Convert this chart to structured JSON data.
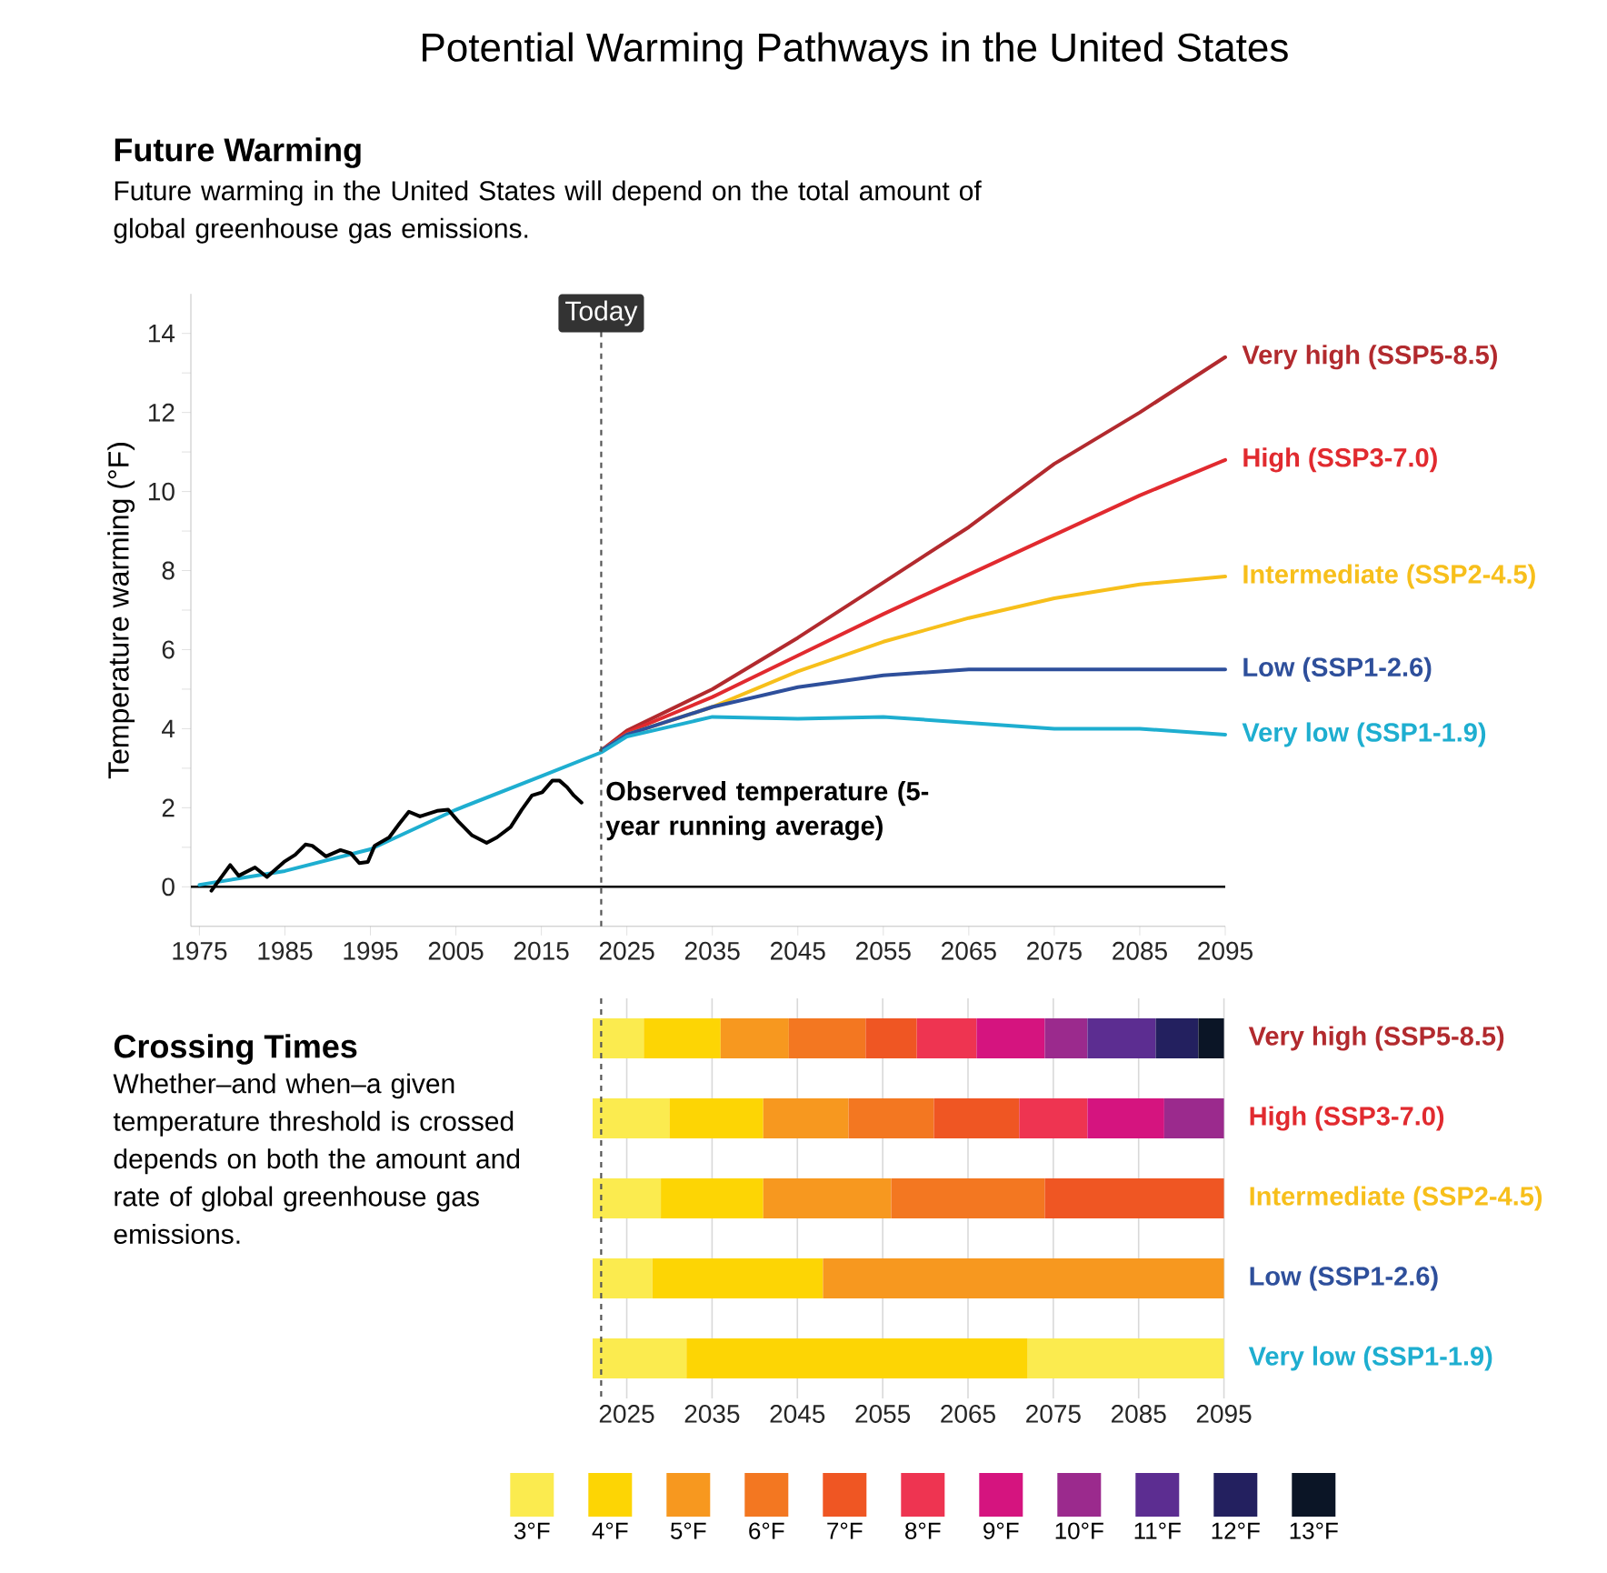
{
  "chart_data": [
    {
      "type": "line",
      "title": "Potential Warming Pathways in the United States",
      "subtitle": "Future Warming",
      "annotations": [
        "Future warming in the United States will depend on the total amount of global greenhouse gas emissions."
      ],
      "ylabel": "Temperature warming (°F)",
      "x": [
        1975,
        1985,
        1995,
        2005,
        2015,
        2022,
        2025,
        2035,
        2045,
        2055,
        2065,
        2075,
        2085,
        2095
      ],
      "xlim": [
        1974,
        2095
      ],
      "ylim": [
        -1,
        15
      ],
      "xticks": [
        1975,
        1985,
        1995,
        2005,
        2015,
        2025,
        2035,
        2045,
        2055,
        2065,
        2075,
        2085,
        2095
      ],
      "yticks": [
        0,
        {
          "value": 1,
          "label": null
        },
        2,
        {
          "value": 3,
          "label": null
        },
        4,
        {
          "value": 5,
          "label": null
        },
        6,
        {
          "value": 7,
          "label": null
        },
        8,
        {
          "value": 9,
          "label": null
        },
        10,
        {
          "value": 11,
          "label": null
        },
        12,
        {
          "value": 13,
          "label": null
        },
        14
      ],
      "series": [
        {
          "name": "Very high (SSP5-8.5)",
          "color": "#b22a2e",
          "values": [
            null,
            null,
            null,
            null,
            null,
            3.45,
            3.95,
            5.0,
            6.3,
            7.7,
            9.1,
            10.7,
            12.0,
            13.4
          ]
        },
        {
          "name": "High (SSP3-7.0)",
          "color": "#e12a2f",
          "values": [
            null,
            null,
            null,
            null,
            null,
            3.45,
            3.9,
            4.8,
            5.85,
            6.9,
            7.9,
            8.9,
            9.9,
            10.8
          ]
        },
        {
          "name": "Intermediate (SSP2-4.5)",
          "color": "#f7bf1b",
          "values": [
            null,
            null,
            null,
            null,
            null,
            3.45,
            3.85,
            4.55,
            5.45,
            6.2,
            6.8,
            7.3,
            7.65,
            7.85
          ]
        },
        {
          "name": "Low (SSP1-2.6)",
          "color": "#2e4f9b",
          "values": [
            null,
            null,
            null,
            null,
            null,
            3.45,
            3.85,
            4.55,
            5.05,
            5.35,
            5.5,
            5.5,
            5.5,
            5.5
          ]
        },
        {
          "name": "Very low (SSP1-1.9)",
          "color": "#1eaed0",
          "values": [
            0.05,
            0.4,
            0.95,
            1.95,
            2.8,
            3.4,
            3.8,
            4.3,
            4.25,
            4.3,
            4.15,
            4.0,
            4.0,
            3.85
          ]
        },
        {
          "name": "Observed temperature (5-year running average)",
          "color": "#000000",
          "x": [
            1976.4,
            1978.6,
            1979.6,
            1981.5,
            1982.9,
            1984.9,
            1986.2,
            1987.4,
            1988.2,
            1989.8,
            1991.5,
            1992.7,
            1993.7,
            1994.7,
            1995.5,
            1997.2,
            1998.4,
            1999.5,
            2000.8,
            2002.8,
            2004.1,
            2005.3,
            2006.9,
            2008.6,
            2009.8,
            2011.4,
            2012.7,
            2013.9,
            2015.1,
            2016.3,
            2017.1,
            2018.0,
            2018.8,
            2019.7
          ],
          "values": [
            -0.1,
            0.55,
            0.28,
            0.49,
            0.25,
            0.63,
            0.81,
            1.07,
            1.04,
            0.77,
            0.93,
            0.85,
            0.6,
            0.63,
            1.04,
            1.25,
            1.6,
            1.9,
            1.78,
            1.92,
            1.95,
            1.65,
            1.3,
            1.11,
            1.25,
            1.51,
            1.95,
            2.31,
            2.39,
            2.69,
            2.69,
            2.52,
            2.31,
            2.13
          ]
        }
      ],
      "ref_lines": [
        {
          "axis": "x",
          "value": 2022,
          "label": "Today",
          "line_style": "dashed",
          "color": "#555555"
        },
        {
          "axis": "y",
          "value": 0,
          "color": "#000000"
        }
      ]
    },
    {
      "type": "bar",
      "orientation": "horizontal",
      "annotations": [
        "Crossing Times",
        "Whether–and when–a given temperature threshold is crossed depends on both the amount and rate of global greenhouse gas emissions."
      ],
      "categories": [
        "Very high (SSP5-8.5)",
        "High (SSP3-7.0)",
        "Intermediate (SSP2-4.5)",
        "Low (SSP1-2.6)",
        "Very low (SSP1-1.9)"
      ],
      "xlim": [
        2021,
        2095
      ],
      "xticks": [
        2025,
        2035,
        2045,
        2055,
        2065,
        2075,
        2085,
        2095
      ],
      "grid": "x",
      "legend": "bottom",
      "series": [
        {
          "name": "3°F",
          "color": "#fbeb4f",
          "base": [
            2021,
            2021,
            2021,
            2021,
            2021
          ],
          "values": [
            6,
            9,
            8,
            7,
            11
          ]
        },
        {
          "name": "4°F",
          "color": "#fdd504",
          "base": [
            2027,
            2030,
            2029,
            2028,
            2032
          ],
          "values": [
            9,
            11,
            12,
            20,
            40
          ]
        },
        {
          "name": "5°F",
          "color": "#f7981f",
          "base": [
            2036,
            2041,
            2041,
            2048,
            null
          ],
          "values": [
            8,
            10,
            15,
            47,
            null
          ]
        },
        {
          "name": "6°F",
          "color": "#f37721",
          "base": [
            2044,
            2051,
            2056,
            null,
            null
          ],
          "values": [
            9,
            10,
            18,
            null,
            null
          ]
        },
        {
          "name": "7°F",
          "color": "#ef5623",
          "base": [
            2053,
            2061,
            2074,
            null,
            null
          ],
          "values": [
            6,
            10,
            21,
            null,
            null
          ]
        },
        {
          "name": "8°F",
          "color": "#ee3451",
          "base": [
            2059,
            2071,
            null,
            null,
            null
          ],
          "values": [
            7,
            8,
            null,
            null,
            null
          ]
        },
        {
          "name": "9°F",
          "color": "#d5147f",
          "base": [
            2066,
            2079,
            null,
            null,
            null
          ],
          "values": [
            8,
            9,
            null,
            null,
            null
          ]
        },
        {
          "name": "10°F",
          "color": "#9b2a8d",
          "base": [
            2074,
            2088,
            null,
            null,
            null
          ],
          "values": [
            5,
            7,
            null,
            null,
            null
          ]
        },
        {
          "name": "11°F",
          "color": "#5c2d91",
          "base": [
            2079,
            null,
            null,
            null,
            null
          ],
          "values": [
            8,
            null,
            null,
            null,
            null
          ]
        },
        {
          "name": "12°F",
          "color": "#23205f",
          "base": [
            2087,
            null,
            null,
            null,
            null
          ],
          "values": [
            5,
            null,
            null,
            null,
            null
          ]
        },
        {
          "name": "13°F",
          "color": "#0b1526",
          "base": [
            2092,
            null,
            null,
            null,
            null
          ],
          "values": [
            3,
            null,
            null,
            null,
            null
          ]
        },
        {
          "color": "#fbeb4f",
          "base": [
            null,
            null,
            null,
            null,
            2072
          ],
          "values": [
            null,
            null,
            null,
            null,
            23
          ]
        }
      ],
      "ref_lines": [
        {
          "axis": "x",
          "value": 2022,
          "line_style": "dashed",
          "color": "#555555"
        }
      ]
    }
  ]
}
